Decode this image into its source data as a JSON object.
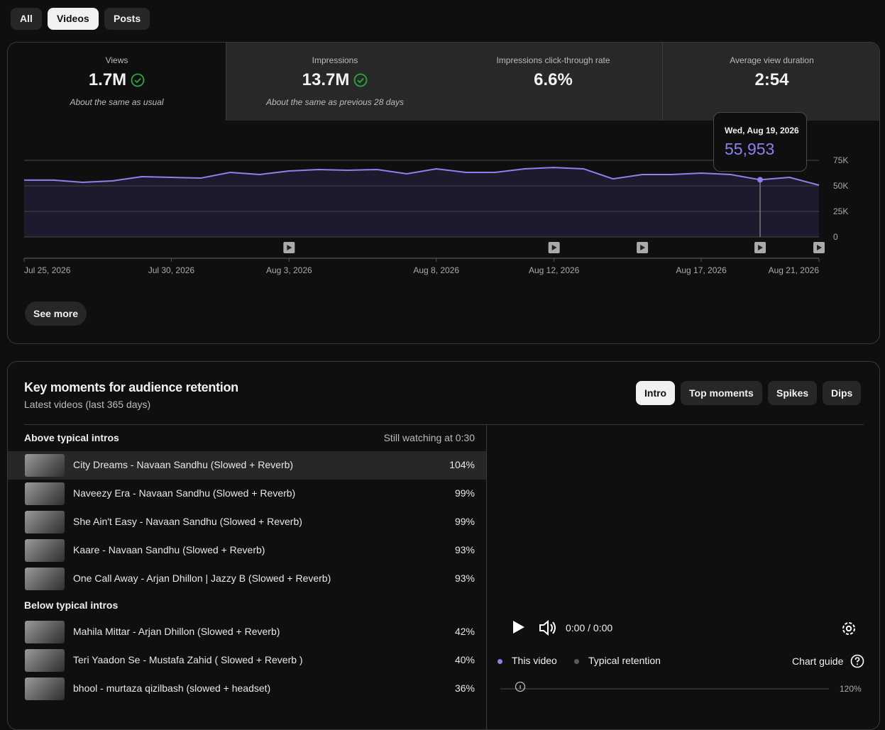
{
  "tabs": [
    "All",
    "Videos",
    "Posts"
  ],
  "selected_tab": "Videos",
  "metrics": [
    {
      "label": "Views",
      "value": "1.7M",
      "note": "About the same as usual",
      "check": true
    },
    {
      "label": "Impressions",
      "value": "13.7M",
      "note": "About the same as previous 28 days",
      "check": true
    },
    {
      "label": "Impressions click-through rate",
      "value": "6.6%",
      "check": false
    },
    {
      "label": "Average view duration",
      "value": "2:54",
      "check": false
    }
  ],
  "selected_metric": "Views",
  "chart_data": {
    "type": "line",
    "x": [
      "2026-07-25",
      "2026-07-26",
      "2026-07-27",
      "2026-07-28",
      "2026-07-29",
      "2026-07-30",
      "2026-07-31",
      "2026-08-01",
      "2026-08-02",
      "2026-08-03",
      "2026-08-04",
      "2026-08-05",
      "2026-08-06",
      "2026-08-07",
      "2026-08-08",
      "2026-08-09",
      "2026-08-10",
      "2026-08-11",
      "2026-08-12",
      "2026-08-13",
      "2026-08-14",
      "2026-08-15",
      "2026-08-16",
      "2026-08-17",
      "2026-08-18",
      "2026-08-19",
      "2026-08-20",
      "2026-08-21"
    ],
    "series": [
      {
        "color": "#8a83ee",
        "values": [
          55600,
          55600,
          53500,
          54900,
          59000,
          58300,
          57600,
          63200,
          61100,
          64600,
          66000,
          65300,
          66000,
          61800,
          66700,
          63200,
          63200,
          66700,
          68000,
          66700,
          56900,
          61100,
          61100,
          62500,
          61100,
          55953,
          58300,
          50700
        ]
      }
    ],
    "xlim": [
      "2026-07-25",
      "2026-08-21"
    ],
    "xticks": [
      {
        "value": "2026-07-25",
        "label": "Jul 25, 2026"
      },
      {
        "value": "2026-07-30",
        "label": "Jul 30, 2026"
      },
      {
        "value": "2026-08-03",
        "label": "Aug 3, 2026"
      },
      {
        "value": "2026-08-08",
        "label": "Aug 8, 2026"
      },
      {
        "value": "2026-08-12",
        "label": "Aug 12, 2026"
      },
      {
        "value": "2026-08-17",
        "label": "Aug 17, 2026"
      },
      {
        "value": "2026-08-21",
        "label": "Aug 21, 2026"
      }
    ],
    "ylim": [
      0,
      75000
    ],
    "yticks": [
      0,
      {
        "value": 25000,
        "label": "25K"
      },
      {
        "value": 50000,
        "label": "50K"
      },
      {
        "value": 75000,
        "label": "75K"
      }
    ],
    "grid": true,
    "video_markers": [
      "2026-08-03",
      "2026-08-12",
      "2026-08-15",
      "2026-08-19",
      "2026-08-21"
    ],
    "tooltip": {
      "x": "2026-08-19",
      "title": "Wed, Aug 19, 2026",
      "value": 55953,
      "label": "55,953"
    }
  },
  "see_more": "See more",
  "retention": {
    "title": "Key moments for audience retention",
    "subtitle": "Latest videos (last 365 days)",
    "filters": [
      "Intro",
      "Top moments",
      "Spikes",
      "Dips"
    ],
    "selected_filter": "Intro",
    "above": {
      "heading": "Above typical intros",
      "column": "Still watching at 0:30",
      "rows": [
        {
          "title": "City Dreams - Navaan Sandhu (Slowed + Reverb)",
          "value": "104%"
        },
        {
          "title": "Naveezy Era - Navaan Sandhu (Slowed + Reverb)",
          "value": "99%"
        },
        {
          "title": "She Ain't Easy - Navaan Sandhu (Slowed + Reverb)",
          "value": "99%"
        },
        {
          "title": "Kaare - Navaan Sandhu (Slowed + Reverb)",
          "value": "93%"
        },
        {
          "title": "One Call Away - Arjan Dhillon | Jazzy B (Slowed + Reverb)",
          "value": "93%"
        }
      ]
    },
    "below": {
      "heading": "Below typical intros",
      "rows": [
        {
          "title": "Mahila Mittar - Arjan Dhillon (Slowed + Reverb)",
          "value": "42%"
        },
        {
          "title": "Teri Yaadon Se - Mustafa Zahid ( Slowed + Reverb )",
          "value": "40%"
        },
        {
          "title": "bhool - murtaza qizilbash (slowed + headset)",
          "value": "36%"
        }
      ]
    },
    "player_time": "0:00 / 0:00",
    "legend": [
      {
        "name": "This video",
        "color": "#8a83ee"
      },
      {
        "name": "Typical retention",
        "color": "#5a5a5a"
      }
    ],
    "chart_guide": "Chart guide",
    "chart": {
      "ylim": [
        0,
        120
      ],
      "yticks": [
        {
          "value": 120,
          "label": "120%"
        }
      ]
    }
  }
}
